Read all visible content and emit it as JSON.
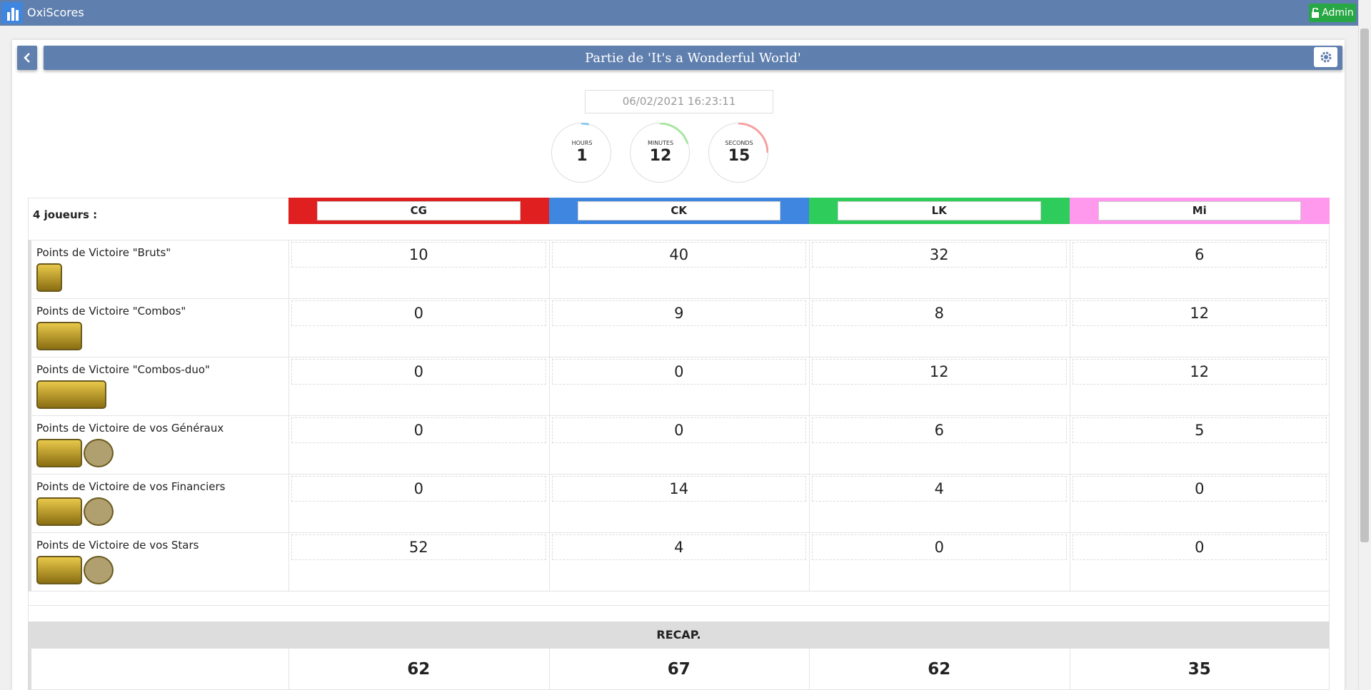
{
  "header": {
    "app": "OxiScores",
    "admin": "Admin"
  },
  "game": {
    "title": "Partie de 'It's a Wonderful World'",
    "date": "06/02/2021 16:23:11"
  },
  "timer": [
    {
      "label": "HOURS",
      "value": "1"
    },
    {
      "label": "MINUTES",
      "value": "12"
    },
    {
      "label": "SECONDS",
      "value": "15"
    }
  ],
  "table": {
    "players_count": "4 joueurs :",
    "players": [
      {
        "name": "CG",
        "color": "#e02020"
      },
      {
        "name": "CK",
        "color": "#3f86e0"
      },
      {
        "name": "LK",
        "color": "#2ecc5a"
      },
      {
        "name": "Mi",
        "color": "#ff99ee"
      }
    ],
    "rows": [
      {
        "label": "Points de Victoire \"Bruts\"",
        "scores": [
          "10",
          "40",
          "32",
          "6"
        ]
      },
      {
        "label": "Points de Victoire \"Combos\"",
        "scores": [
          "0",
          "9",
          "8",
          "12"
        ]
      },
      {
        "label": "Points de Victoire \"Combos-duo\"",
        "scores": [
          "0",
          "0",
          "12",
          "12"
        ]
      },
      {
        "label": "Points de Victoire de vos Généraux",
        "scores": [
          "0",
          "0",
          "6",
          "5"
        ]
      },
      {
        "label": "Points de Victoire de vos Financiers",
        "scores": [
          "0",
          "14",
          "4",
          "0"
        ]
      },
      {
        "label": "Points de Victoire de vos Stars",
        "scores": [
          "52",
          "4",
          "0",
          "0"
        ]
      }
    ],
    "recap": "RECAP.",
    "totals": [
      "62",
      "67",
      "62",
      "35"
    ]
  }
}
